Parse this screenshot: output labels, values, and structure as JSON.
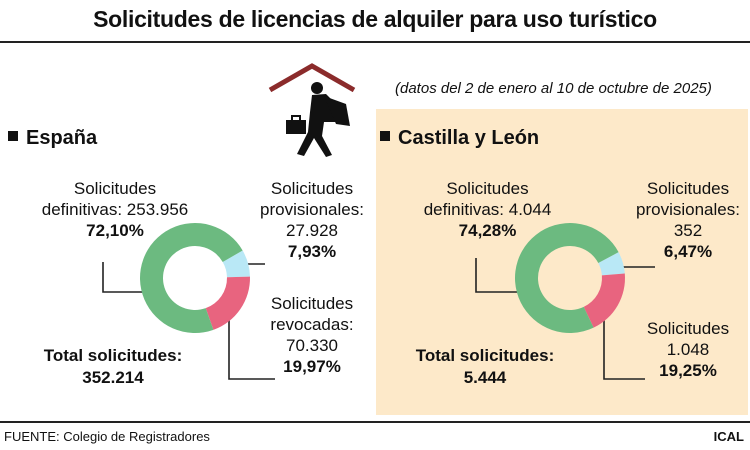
{
  "title": "Solicitudes de licencias de alquiler para uso turístico",
  "subtitle": "(datos del 2 de enero al 10 de octubre de 2025)",
  "source": "FUENTE: Colegio de Registradores",
  "credit": "ICAL",
  "colors": {
    "definitivas": "#6cba80",
    "provisionales": "#b9e8f6",
    "revocadas": "#e8647f",
    "panel": "#fde9c9"
  },
  "illustration_icon": "man-carrying-suitcase-under-roof-icon",
  "chart_data": [
    {
      "type": "pie",
      "donut": true,
      "title": "España",
      "categories": [
        "Solicitudes provisionales",
        "Solicitudes revocadas",
        "Solicitudes definitivas"
      ],
      "values": [
        27928,
        70330,
        253956
      ],
      "percents": [
        7.93,
        19.97,
        72.1
      ],
      "labels": {
        "definitivas_l1": "Solicitudes",
        "definitivas_l2": "definitivas: 253.956",
        "definitivas_pct": "72,10%",
        "provisionales_l1": "Solicitudes",
        "provisionales_l2": "provisionales:",
        "provisionales_val": "27.928",
        "provisionales_pct": "7,93%",
        "revocadas_l1": "Solicitudes",
        "revocadas_l2": "revocadas:",
        "revocadas_val": "70.330",
        "revocadas_pct": "19,97%",
        "total_label": "Total solicitudes:",
        "total_value": "352.214"
      }
    },
    {
      "type": "pie",
      "donut": true,
      "title": "Castilla y León",
      "categories": [
        "Solicitudes provisionales",
        "Solicitudes",
        "Solicitudes definitivas"
      ],
      "values": [
        352,
        1048,
        4044
      ],
      "percents": [
        6.47,
        19.25,
        74.28
      ],
      "labels": {
        "definitivas_l1": "Solicitudes",
        "definitivas_l2": "definitivas: 4.044",
        "definitivas_pct": "74,28%",
        "provisionales_l1": "Solicitudes",
        "provisionales_l2": "provisionales:",
        "provisionales_val": "352",
        "provisionales_pct": "6,47%",
        "revocadas_l1": "Solicitudes",
        "revocadas_val": "1.048",
        "revocadas_pct": "19,25%",
        "total_label": "Total solicitudes:",
        "total_value": "5.444"
      }
    }
  ]
}
